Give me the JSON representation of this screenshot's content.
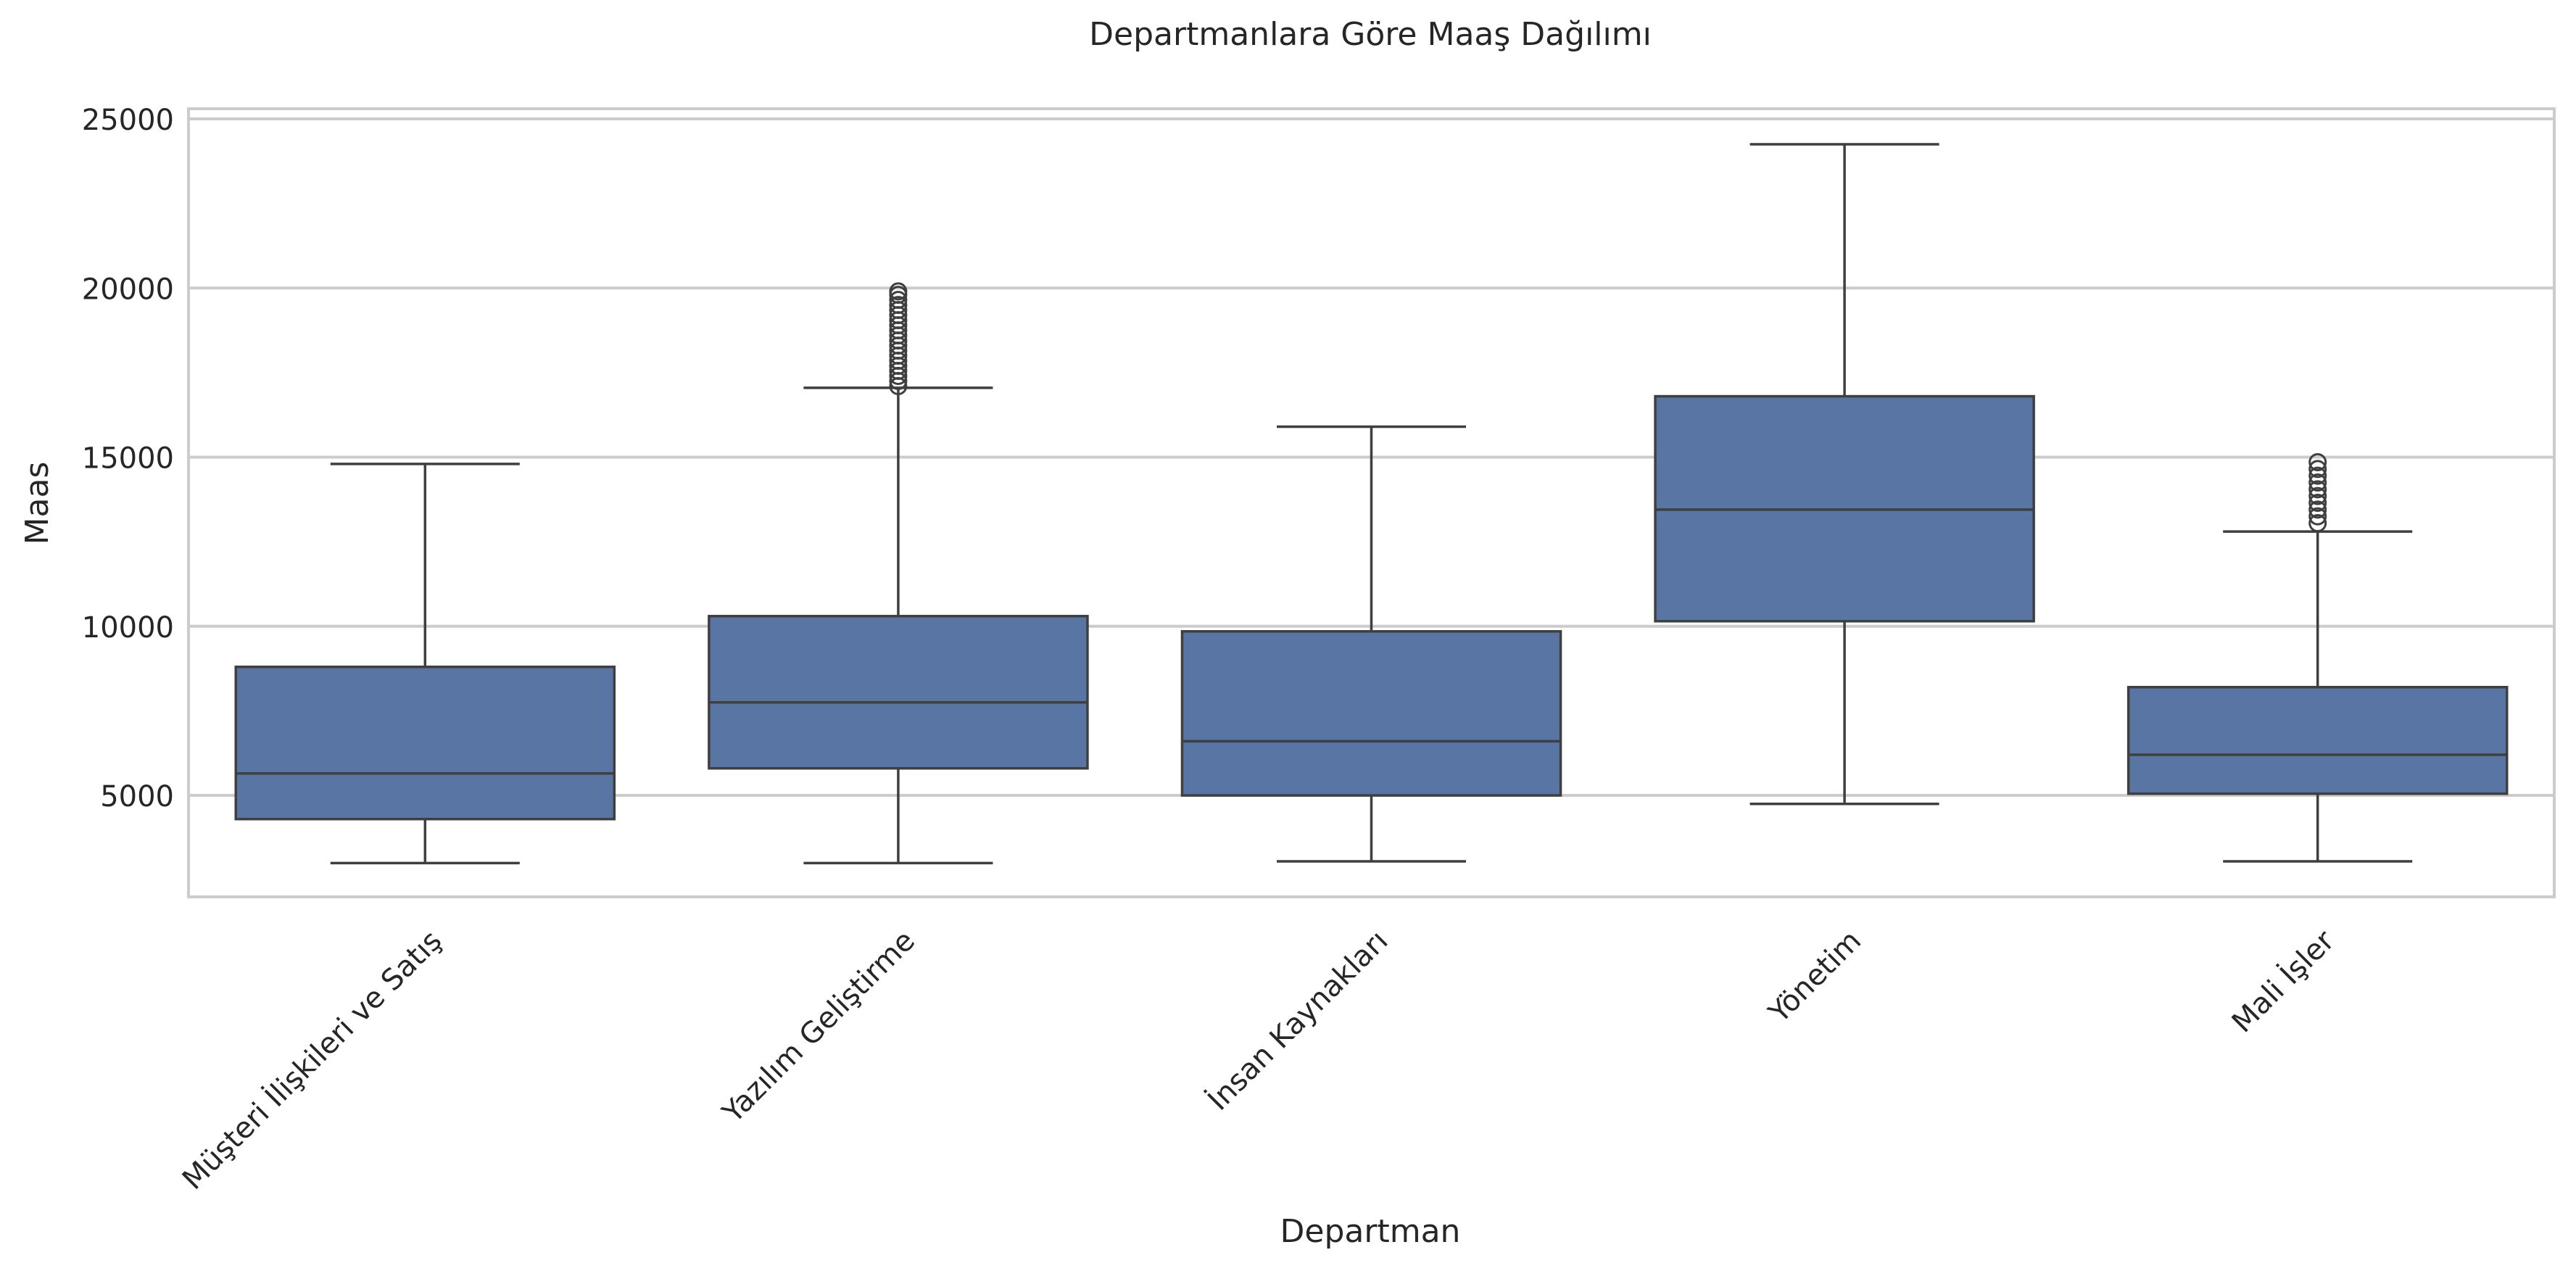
{
  "chart_data": {
    "type": "box",
    "title": "Departmanlara Göre Maaş Dağılımı",
    "xlabel": "Departman",
    "ylabel": "Maas",
    "ylim": [
      2000,
      25300
    ],
    "yticks": [
      5000,
      10000,
      15000,
      20000,
      25000
    ],
    "grid": "y",
    "box_color": "#5875a4",
    "line_color": "#3f3f3f",
    "categories": [
      "Müşteri İlişkileri ve Satış",
      "Yazılım Geliştirme",
      "İnsan Kaynakları",
      "Yönetim",
      "Mali İşler"
    ],
    "boxes": [
      {
        "whislo": 3000,
        "q1": 4300,
        "med": 5650,
        "q3": 8800,
        "whishi": 14800,
        "fliers": []
      },
      {
        "whislo": 3000,
        "q1": 5800,
        "med": 7750,
        "q3": 10300,
        "whishi": 17050,
        "fliers": [
          17100,
          17250,
          17400,
          17550,
          17700,
          17850,
          18000,
          18150,
          18300,
          18450,
          18600,
          18750,
          18900,
          19050,
          19200,
          19350,
          19500,
          19650,
          19800,
          19900
        ]
      },
      {
        "whislo": 3050,
        "q1": 5000,
        "med": 6600,
        "q3": 9850,
        "whishi": 15900,
        "fliers": []
      },
      {
        "whislo": 4750,
        "q1": 10150,
        "med": 13450,
        "q3": 16800,
        "whishi": 24250,
        "fliers": []
      },
      {
        "whislo": 3050,
        "q1": 5050,
        "med": 6200,
        "q3": 8200,
        "whishi": 12800,
        "fliers": [
          13050,
          13250,
          13450,
          13650,
          13850,
          14050,
          14250,
          14450,
          14650,
          14850
        ]
      }
    ]
  }
}
